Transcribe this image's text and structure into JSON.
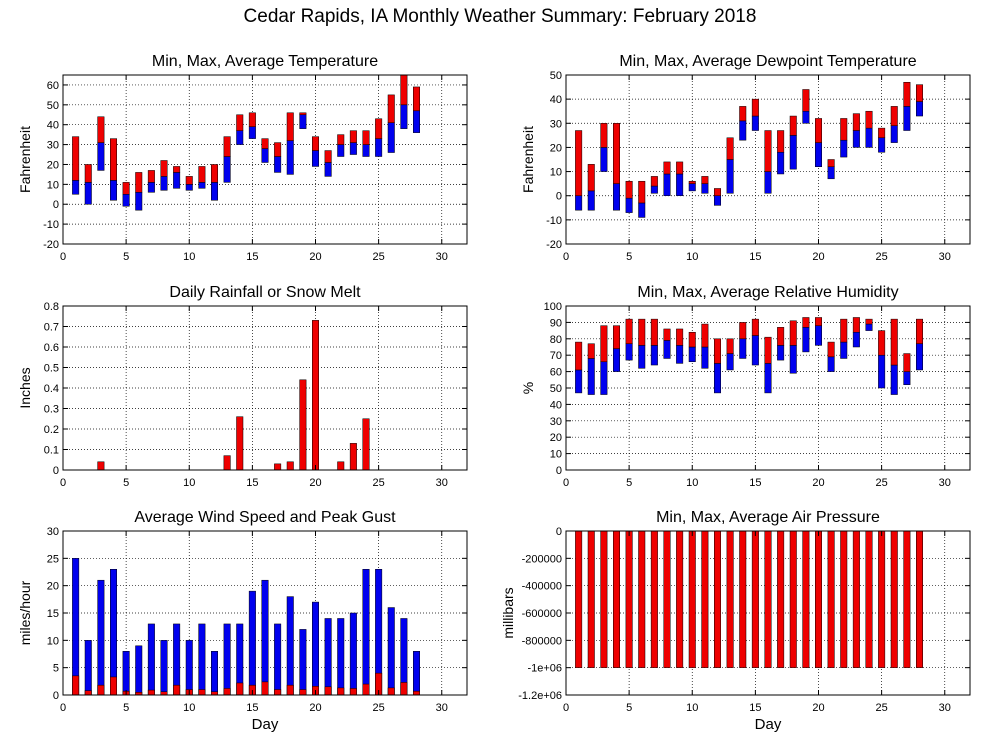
{
  "title": "Cedar Rapids, IA Monthly Weather Summary: February 2018",
  "colors": {
    "max_bar": "#ee0000",
    "min_bar": "#0000ee",
    "grid": "#000000"
  },
  "chart_data": [
    {
      "id": "temp",
      "type": "bar",
      "subtype": "floating-range",
      "title": "Min, Max, Average Temperature",
      "ylabel": "Fahrenheit",
      "xlabel": "",
      "xlim": [
        0,
        32
      ],
      "xticks": [
        0,
        5,
        10,
        15,
        20,
        25,
        30
      ],
      "ylim": [
        -20,
        65
      ],
      "yticks": [
        -20,
        -10,
        0,
        10,
        20,
        30,
        40,
        50,
        60
      ],
      "yticklabels": [
        "-20",
        "-10",
        "0",
        "10",
        "20",
        "30",
        "40",
        "50",
        "60"
      ],
      "x": [
        1,
        2,
        3,
        4,
        5,
        6,
        7,
        8,
        9,
        10,
        11,
        12,
        13,
        14,
        15,
        16,
        17,
        18,
        19,
        20,
        21,
        22,
        23,
        24,
        25,
        26,
        27,
        28
      ],
      "min": [
        5,
        0,
        17,
        2,
        -1,
        -3,
        6,
        7,
        8,
        7,
        8,
        2,
        11,
        30,
        33,
        21,
        16,
        15,
        38,
        19,
        14,
        24,
        25,
        24,
        24,
        26,
        38,
        36
      ],
      "avg": [
        12,
        11,
        31,
        12,
        5,
        6,
        11,
        14,
        16,
        10,
        11,
        11,
        24,
        37,
        39,
        28,
        24,
        32,
        45,
        27,
        21,
        30,
        31,
        30,
        33,
        41,
        50,
        47
      ],
      "max": [
        34,
        20,
        44,
        33,
        11,
        16,
        17,
        22,
        19,
        14,
        19,
        20,
        34,
        45,
        46,
        33,
        31,
        46,
        46,
        34,
        27,
        35,
        37,
        37,
        43,
        55,
        65,
        59
      ],
      "grid": true
    },
    {
      "id": "dewpoint",
      "type": "bar",
      "subtype": "floating-range",
      "title": "Min, Max, Average Dewpoint Temperature",
      "ylabel": "Fahrenheit",
      "xlabel": "",
      "xlim": [
        0,
        32
      ],
      "xticks": [
        0,
        5,
        10,
        15,
        20,
        25,
        30
      ],
      "ylim": [
        -20,
        50
      ],
      "yticks": [
        -20,
        -10,
        0,
        10,
        20,
        30,
        40,
        50
      ],
      "yticklabels": [
        "-20",
        "-10",
        "0",
        "10",
        "20",
        "30",
        "40",
        "50"
      ],
      "x": [
        1,
        2,
        3,
        4,
        5,
        6,
        7,
        8,
        9,
        10,
        11,
        12,
        13,
        14,
        15,
        16,
        17,
        18,
        19,
        20,
        21,
        22,
        23,
        24,
        25,
        26,
        27,
        28
      ],
      "min": [
        -6,
        -6,
        10,
        -6,
        -7,
        -9,
        1,
        0,
        0,
        2,
        1,
        -4,
        1,
        23,
        27,
        1,
        9,
        11,
        30,
        12,
        7,
        16,
        20,
        20,
        18,
        22,
        27,
        33
      ],
      "avg": [
        0,
        2,
        20,
        5,
        -1,
        -3,
        4,
        9,
        9,
        5,
        5,
        0,
        15,
        31,
        33,
        10,
        18,
        25,
        35,
        22,
        12,
        23,
        27,
        28,
        24,
        29,
        37,
        39
      ],
      "max": [
        27,
        13,
        30,
        30,
        6,
        6,
        8,
        14,
        14,
        6,
        8,
        3,
        24,
        37,
        40,
        27,
        27,
        33,
        44,
        32,
        15,
        32,
        34,
        35,
        28,
        37,
        47,
        46
      ],
      "grid": true
    },
    {
      "id": "rain",
      "type": "bar",
      "title": "Daily Rainfall or Snow Melt",
      "ylabel": "Inches",
      "xlabel": "",
      "xlim": [
        0,
        32
      ],
      "xticks": [
        0,
        5,
        10,
        15,
        20,
        25,
        30
      ],
      "ylim": [
        0,
        0.8
      ],
      "yticks": [
        0,
        0.1,
        0.2,
        0.3,
        0.4,
        0.5,
        0.6,
        0.7,
        0.8
      ],
      "yticklabels": [
        "0",
        "0.1",
        "0.2",
        "0.3",
        "0.4",
        "0.5",
        "0.6",
        "0.7",
        "0.8"
      ],
      "x": [
        3,
        13,
        14,
        17,
        18,
        19,
        20,
        22,
        23,
        24
      ],
      "values": [
        0.04,
        0.07,
        0.26,
        0.03,
        0.04,
        0.44,
        0.73,
        0.04,
        0.13,
        0.25
      ],
      "grid": true
    },
    {
      "id": "humidity",
      "type": "bar",
      "subtype": "floating-range",
      "title": "Min, Max, Average Relative Humidity",
      "ylabel": "%",
      "xlabel": "",
      "xlim": [
        0,
        32
      ],
      "xticks": [
        0,
        5,
        10,
        15,
        20,
        25,
        30
      ],
      "ylim": [
        0,
        100
      ],
      "yticks": [
        0,
        10,
        20,
        30,
        40,
        50,
        60,
        70,
        80,
        90,
        100
      ],
      "yticklabels": [
        "0",
        "10",
        "20",
        "30",
        "40",
        "50",
        "60",
        "70",
        "80",
        "90",
        "100"
      ],
      "x": [
        1,
        2,
        3,
        4,
        5,
        6,
        7,
        8,
        9,
        10,
        11,
        12,
        13,
        14,
        15,
        16,
        17,
        18,
        19,
        20,
        21,
        22,
        23,
        24,
        25,
        26,
        27,
        28
      ],
      "min": [
        47,
        46,
        46,
        60,
        67,
        62,
        64,
        68,
        65,
        66,
        62,
        47,
        61,
        68,
        64,
        47,
        67,
        59,
        72,
        76,
        60,
        68,
        75,
        85,
        50,
        46,
        52,
        61
      ],
      "avg": [
        61,
        68,
        66,
        74,
        77,
        76,
        76,
        79,
        76,
        75,
        75,
        65,
        71,
        80,
        82,
        65,
        76,
        76,
        87,
        88,
        69,
        78,
        84,
        89,
        70,
        64,
        60,
        77
      ],
      "max": [
        78,
        77,
        88,
        88,
        92,
        92,
        92,
        86,
        86,
        84,
        89,
        80,
        80,
        90,
        92,
        81,
        87,
        91,
        93,
        93,
        78,
        92,
        93,
        92,
        85,
        92,
        71,
        92
      ],
      "grid": true
    },
    {
      "id": "wind",
      "type": "bar",
      "title": "Average Wind Speed and Peak Gust",
      "ylabel": "miles/hour",
      "xlabel": "Day",
      "xlim": [
        0,
        32
      ],
      "xticks": [
        0,
        5,
        10,
        15,
        20,
        25,
        30
      ],
      "ylim": [
        0,
        30
      ],
      "yticks": [
        0,
        5,
        10,
        15,
        20,
        25,
        30
      ],
      "yticklabels": [
        "0",
        "5",
        "10",
        "15",
        "20",
        "25",
        "30"
      ],
      "x": [
        1,
        2,
        3,
        4,
        5,
        6,
        7,
        8,
        9,
        10,
        11,
        12,
        13,
        14,
        15,
        16,
        17,
        18,
        19,
        20,
        21,
        22,
        23,
        24,
        25,
        26,
        27,
        28
      ],
      "series": [
        {
          "values": [
            25,
            10,
            21,
            23,
            8,
            9,
            13,
            10,
            13,
            10,
            13,
            8,
            13,
            13,
            19,
            21,
            13,
            18,
            12,
            17,
            14,
            14,
            15,
            23,
            23,
            16,
            14,
            8
          ]
        },
        {
          "values": [
            3.5,
            0.8,
            1.8,
            3.3,
            0.7,
            0.5,
            0.9,
            0.6,
            1.8,
            1.0,
            1.0,
            0.6,
            1.2,
            2.2,
            1.8,
            2.4,
            1.0,
            1.8,
            1.0,
            1.6,
            1.5,
            1.3,
            1.2,
            2.0,
            4.0,
            1.3,
            2.3,
            0.7
          ]
        }
      ],
      "grid": true
    },
    {
      "id": "pressure",
      "type": "bar",
      "subtype": "floating-range",
      "title": "Min, Max, Average Air Pressure",
      "ylabel": "millibars",
      "xlabel": "Day",
      "xlim": [
        0,
        32
      ],
      "xticks": [
        0,
        5,
        10,
        15,
        20,
        25,
        30
      ],
      "ylim": [
        -1200000,
        0
      ],
      "yticks": [
        -1200000,
        -1000000,
        -800000,
        -600000,
        -400000,
        -200000,
        0
      ],
      "yticklabels": [
        "-1.2e+06",
        "-1e+06",
        "-800000",
        "-600000",
        "-400000",
        "-200000",
        "0"
      ],
      "x": [
        1,
        2,
        3,
        4,
        5,
        6,
        7,
        8,
        9,
        10,
        11,
        12,
        13,
        14,
        15,
        16,
        17,
        18,
        19,
        20,
        21,
        22,
        23,
        24,
        25,
        26,
        27,
        28
      ],
      "min": [
        -1000000,
        -1000000,
        -1000000,
        -1000000,
        -1000000,
        -1000000,
        -1000000,
        -1000000,
        -1000000,
        -1000000,
        -1000000,
        -1000000,
        -1000000,
        -1000000,
        -1000000,
        -1000000,
        -1000000,
        -1000000,
        -1000000,
        -1000000,
        -1000000,
        -1000000,
        -1000000,
        -1000000,
        -1000000,
        -1000000,
        -1000000,
        -1000000
      ],
      "avg": [
        -1000000,
        -1000000,
        -1000000,
        -1000000,
        -1000000,
        -1000000,
        -1000000,
        -1000000,
        -1000000,
        -1000000,
        -1000000,
        -1000000,
        -1000000,
        -1000000,
        -1000000,
        -1000000,
        -1000000,
        -1000000,
        -1000000,
        -1000000,
        -1000000,
        -1000000,
        -1000000,
        -1000000,
        -1000000,
        -1000000,
        -1000000,
        -1000000
      ],
      "max": [
        0,
        0,
        0,
        0,
        0,
        0,
        0,
        0,
        0,
        0,
        0,
        0,
        0,
        0,
        0,
        0,
        0,
        0,
        0,
        0,
        0,
        0,
        0,
        0,
        0,
        0,
        0,
        0
      ],
      "grid": true
    }
  ]
}
